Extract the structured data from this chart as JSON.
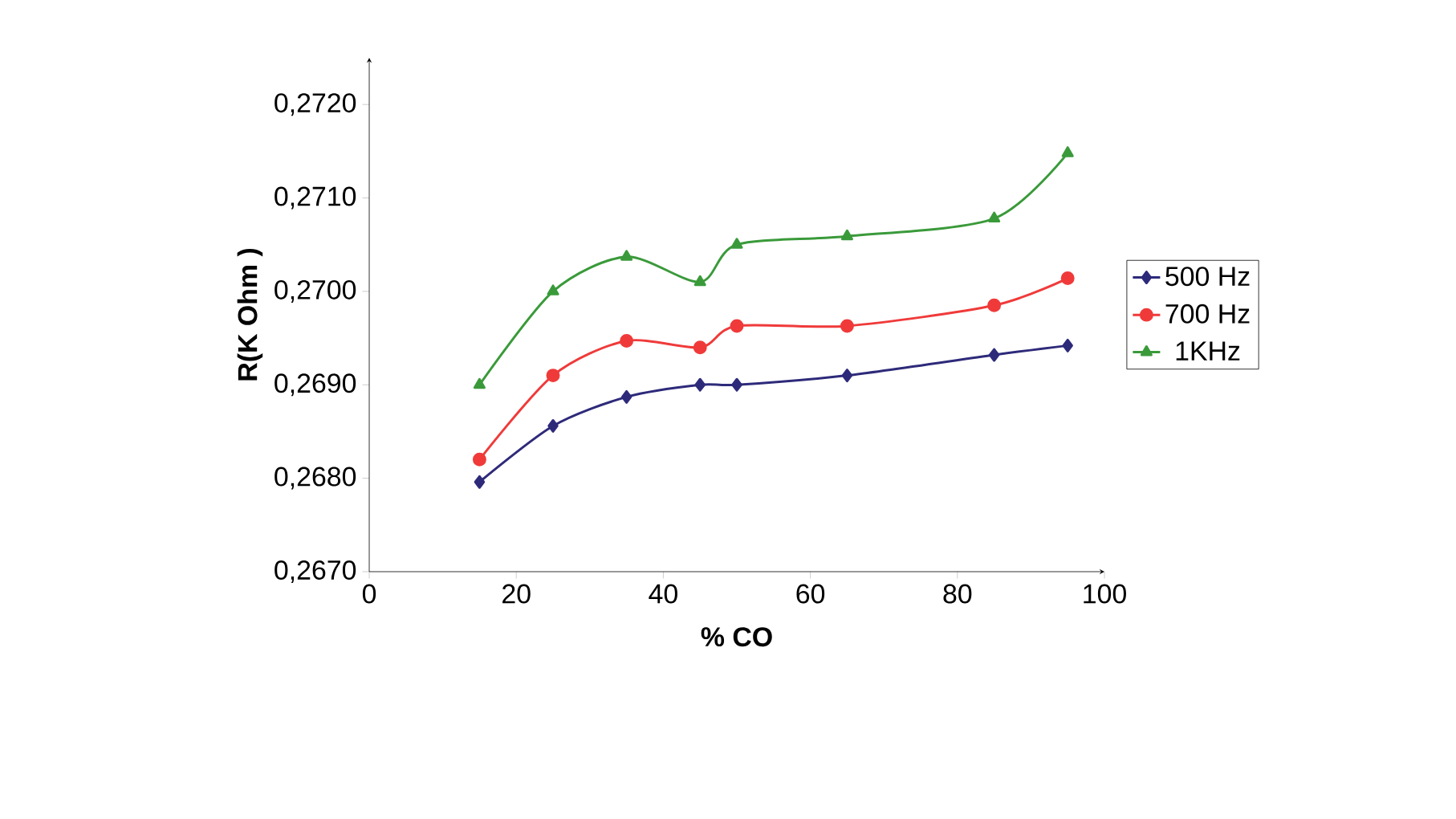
{
  "chart_data": {
    "type": "line",
    "xlabel": "% CO",
    "ylabel": "R(K Ohm  )",
    "x": [
      15,
      25,
      35,
      45,
      50,
      65,
      85,
      95
    ],
    "series": [
      {
        "name": "500 Hz",
        "color": "#2e2a7a",
        "marker": "diamond",
        "values": [
          0.26796,
          0.26856,
          0.26887,
          0.269,
          0.269,
          0.2691,
          0.26932,
          0.26942
        ]
      },
      {
        "name": "700 Hz",
        "color": "#f03a3a",
        "marker": "circle",
        "values": [
          0.2682,
          0.2691,
          0.26947,
          0.2694,
          0.26963,
          0.26963,
          0.26985,
          0.27014
        ]
      },
      {
        "name": "1KHz",
        "color": "#3a9a3a",
        "marker": "triangle",
        "values": [
          0.269,
          0.27,
          0.27037,
          0.2701,
          0.2705,
          0.27059,
          0.27078,
          0.27148
        ]
      }
    ],
    "xlim": [
      0,
      100
    ],
    "xticks": [
      0,
      20,
      40,
      60,
      80,
      100
    ],
    "ylim": [
      0.267,
      0.2725
    ],
    "yticks": [
      {
        "value": 0.267,
        "label": "0,2670"
      },
      {
        "value": 0.268,
        "label": "0,2680"
      },
      {
        "value": 0.269,
        "label": "0,2690"
      },
      {
        "value": 0.27,
        "label": "0,2700"
      },
      {
        "value": 0.271,
        "label": "0,2710"
      },
      {
        "value": 0.272,
        "label": "0,2720"
      }
    ],
    "grid": false,
    "legend": "right"
  }
}
